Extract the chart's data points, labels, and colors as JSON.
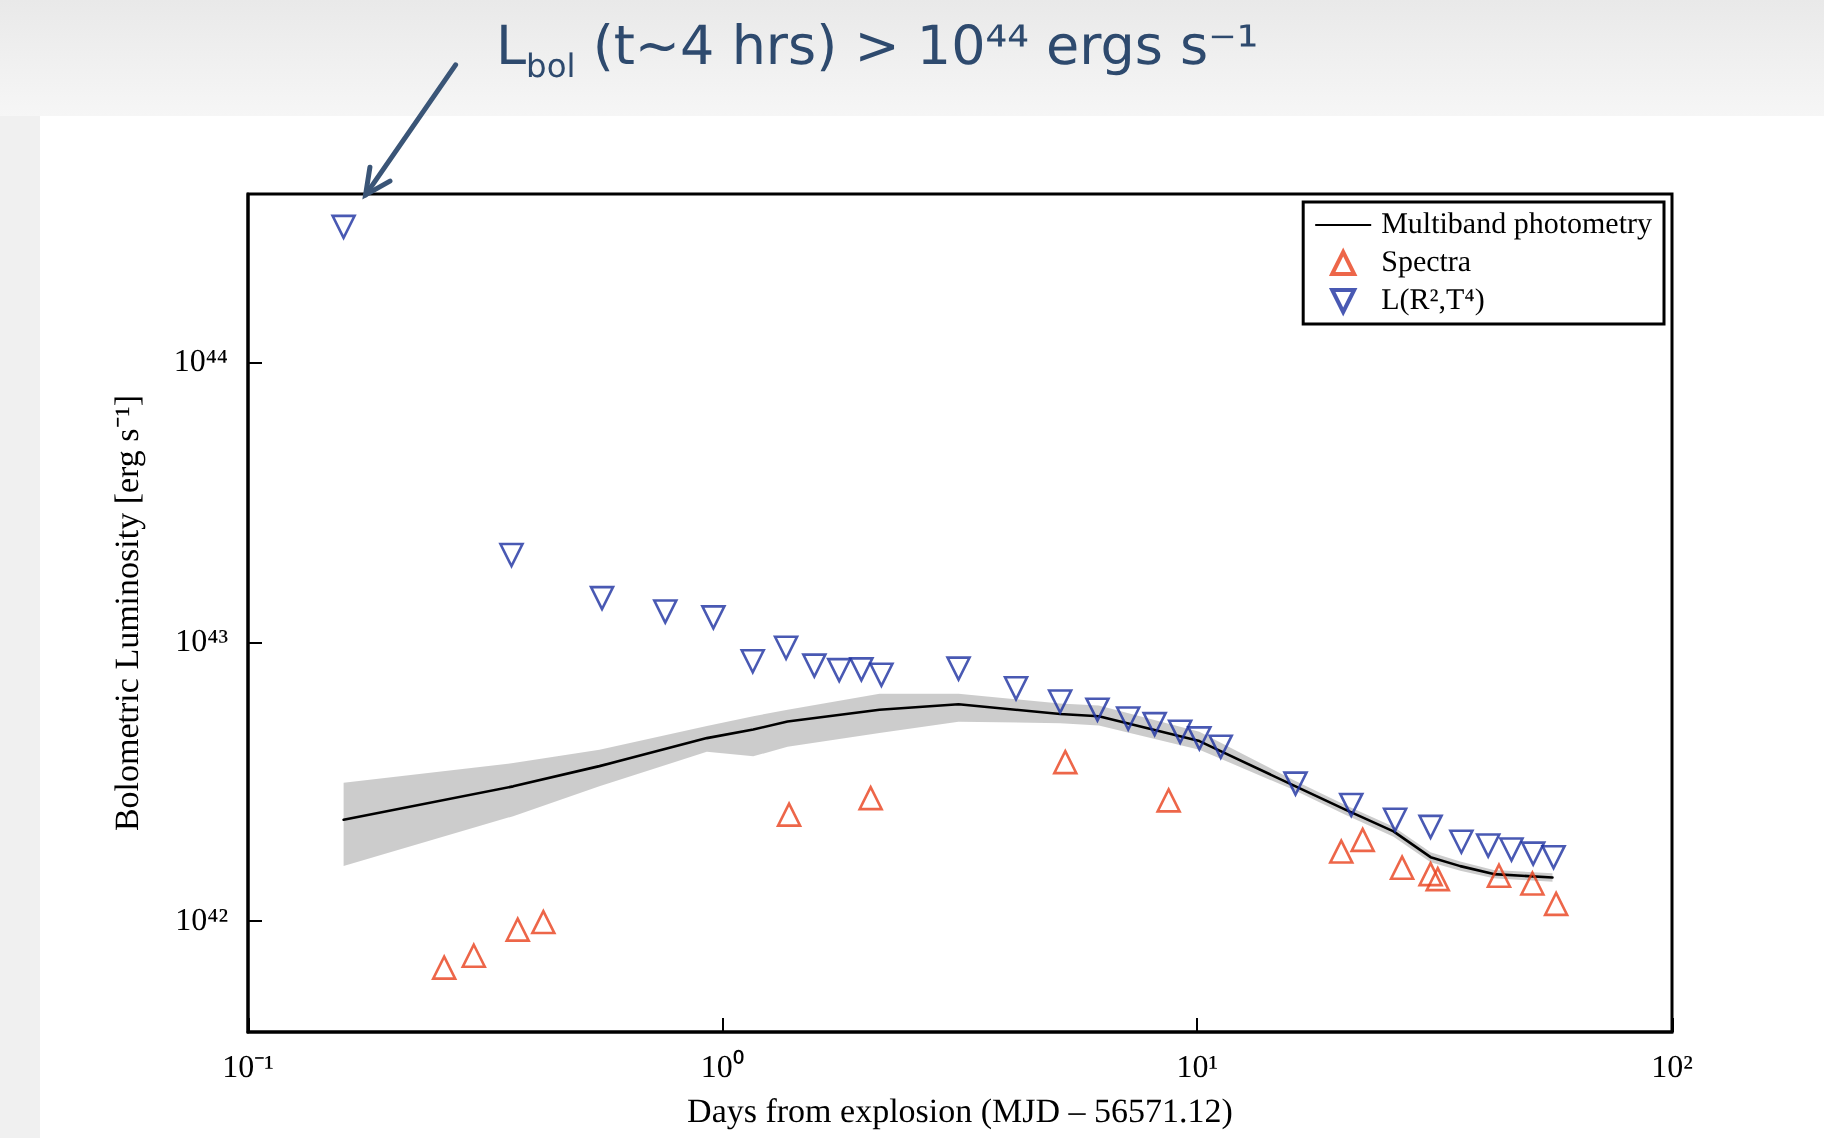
{
  "chart_data": {
    "type": "scatter",
    "xlabel": "Days from explosion (MJD – 56571.12)",
    "ylabel": "Bolometric Luminosity [erg s⁻¹]",
    "annotations": [
      "L$_{bol}$ (t~4 hrs) > 10⁴⁴ ergs s⁻¹"
    ],
    "log": "xy",
    "grid": false,
    "legend": "top right",
    "xlim": [
      0.1,
      100
    ],
    "ylim": [
      4e+41,
      4e+44
    ],
    "xticks": [
      {
        "value": 0.1,
        "label": "10⁻¹"
      },
      {
        "value": 1,
        "label": "10⁰"
      },
      {
        "value": 10,
        "label": "10¹"
      },
      {
        "value": 100,
        "label": "10²"
      }
    ],
    "yticks": [
      {
        "value": 1e+42,
        "label": "10⁴²"
      },
      {
        "value": 1e+43,
        "label": "10⁴³"
      },
      {
        "value": 1e+44,
        "label": "10⁴⁴"
      }
    ],
    "series": [
      {
        "name": "Multiband photometry",
        "type": "line",
        "color": "#000000",
        "marker": "none",
        "line_style": "solid",
        "x": [
          0.159,
          0.362,
          0.55,
          0.926,
          1.16,
          1.37,
          2.14,
          3.14,
          5.14,
          6.2,
          10.1,
          15.9,
          20.5,
          25.9,
          31,
          35.8,
          42.1,
          56
        ],
        "values": [
          2.3e+42,
          3.03e+42,
          3.58e+42,
          4.51e+42,
          4.84e+42,
          5.17e+42,
          5.7e+42,
          5.96e+42,
          5.5e+42,
          5.4e+42,
          4.4e+42,
          3.06e+42,
          2.5e+42,
          2.09e+42,
          1.69e+42,
          1.57e+42,
          1.47e+42,
          1.43e+42
        ],
        "upper": [
          3.12e+42,
          3.67e+42,
          4.1e+42,
          4.98e+42,
          5.4e+42,
          5.7e+42,
          6.5e+42,
          6.5e+42,
          6e+42,
          5.9e+42,
          4.75e+42,
          3.2e+42,
          2.6e+42,
          2.17e+42,
          1.76e+42,
          1.63e+42,
          1.52e+42,
          1.48e+42
        ],
        "lower": [
          1.57e+42,
          2.37e+42,
          3.03e+42,
          4.03e+42,
          3.88e+42,
          4.2e+42,
          4.7e+42,
          5.16e+42,
          5.1e+42,
          5e+42,
          4.1e+42,
          2.95e+42,
          2.4e+42,
          2e+42,
          1.62e+42,
          1.51e+42,
          1.42e+42,
          1.38e+42
        ]
      },
      {
        "name": "Spectra",
        "color": "#e8401c",
        "marker": "triangle",
        "x": [
          0.259,
          0.299,
          0.37,
          0.419,
          1.38,
          2.05,
          5.27,
          8.7,
          20.1,
          22.3,
          27,
          31,
          32.1,
          43.2,
          50.8,
          57
        ],
        "values": [
          6.8e+41,
          7.5e+41,
          9.3e+41,
          9.9e+41,
          2.4e+42,
          2.75e+42,
          3.7e+42,
          2.7e+42,
          1.77e+42,
          1.95e+42,
          1.55e+42,
          1.47e+42,
          1.41e+42,
          1.45e+42,
          1.36e+42,
          1.15e+42
        ]
      },
      {
        "name": "L(R²,T⁴)",
        "color": "#1c2fa0",
        "marker": "triangle_down",
        "x": [
          0.159,
          0.359,
          0.557,
          0.757,
          0.956,
          1.157,
          1.36,
          1.56,
          1.76,
          1.96,
          2.16,
          3.14,
          4.15,
          5.14,
          6.16,
          7.15,
          8.13,
          9.2,
          10.1,
          11.2,
          16.1,
          21.1,
          26.1,
          31,
          36,
          41,
          45.9,
          51,
          56.3
        ],
        "values": [
          3.05e+44,
          2.04e+43,
          1.43e+43,
          1.28e+43,
          1.22e+43,
          8.5e+42,
          9.5e+42,
          8.2e+42,
          7.9e+42,
          7.95e+42,
          7.6e+42,
          8e+42,
          6.8e+42,
          6.1e+42,
          5.7e+42,
          5.3e+42,
          5.06e+42,
          4.75e+42,
          4.5e+42,
          4.2e+42,
          3.1e+42,
          2.6e+42,
          2.3e+42,
          2.17e+42,
          1.92e+42,
          1.86e+42,
          1.8e+42,
          1.74e+42,
          1.69e+42
        ]
      }
    ]
  }
}
